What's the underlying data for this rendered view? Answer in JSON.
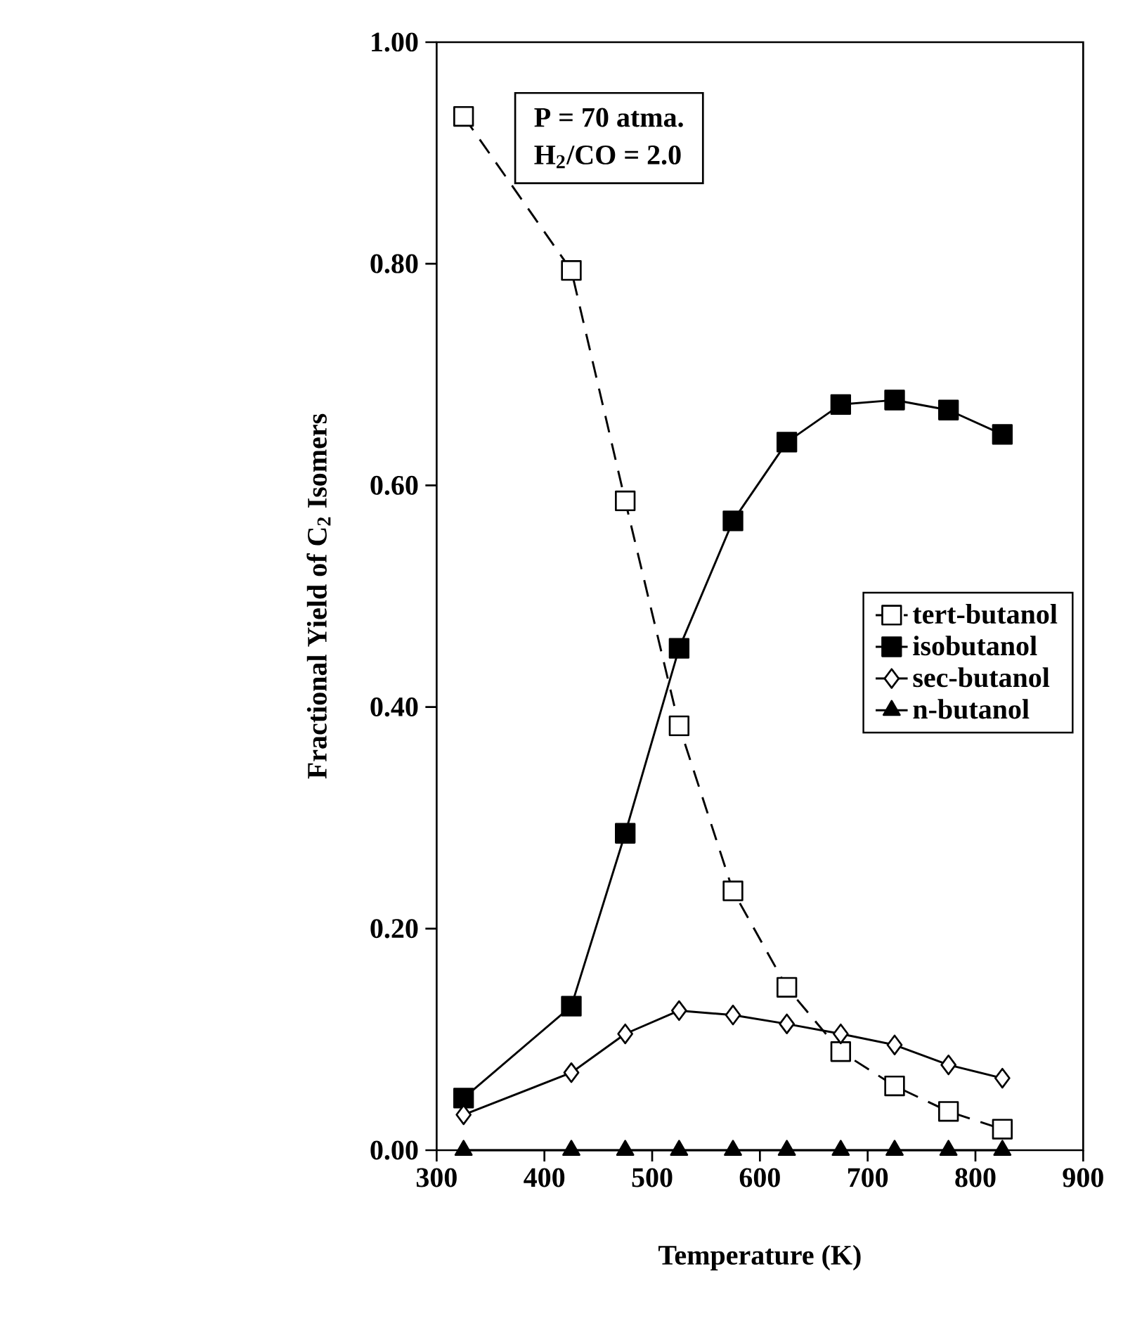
{
  "chart_data": {
    "type": "line",
    "xlabel": "Temperature (K)",
    "ylabel": "Fractional Yield of C$_{2}$ Isomers",
    "annotations": [
      "P = 70 atma.",
      "H$_{2}$/CO = 2.0"
    ],
    "x": [
      325,
      425,
      475,
      525,
      575,
      625,
      675,
      725,
      775,
      825
    ],
    "xlim": [
      300,
      900
    ],
    "xticks": [
      300,
      400,
      500,
      600,
      700,
      800,
      900
    ],
    "ylim": [
      0,
      1
    ],
    "yticks": [
      {
        "value": 0,
        "label": "0.00"
      },
      {
        "value": 0.2,
        "label": "0.20"
      },
      {
        "value": 0.4,
        "label": "0.40"
      },
      {
        "value": 0.6,
        "label": "0.60"
      },
      {
        "value": 0.8,
        "label": "0.80"
      },
      {
        "value": 1,
        "label": "1.00"
      }
    ],
    "grid": false,
    "legend": "right",
    "series": [
      {
        "name": "tert-butanol",
        "color": "#000000",
        "marker": "square",
        "line_style": "dashed",
        "values": [
          0.933,
          0.794,
          0.586,
          0.383,
          0.234,
          0.147,
          0.089,
          0.058,
          0.035,
          0.019
        ]
      },
      {
        "name": "isobutanol",
        "color": "#000000",
        "marker": "square",
        "line_style": "solid",
        "values": [
          0.047,
          0.13,
          0.286,
          0.453,
          0.568,
          0.639,
          0.673,
          0.677,
          0.668,
          0.646
        ]
      },
      {
        "name": "sec-butanol",
        "color": "#000000",
        "marker": "diamond",
        "line_style": "solid",
        "values": [
          0.032,
          0.07,
          0.105,
          0.126,
          0.122,
          0.114,
          0.105,
          0.095,
          0.077,
          0.065
        ]
      },
      {
        "name": "n-butanol",
        "color": "#000000",
        "marker": "triangle",
        "line_style": "solid",
        "values": [
          0.0,
          0.0,
          0.0,
          0.0,
          0.0,
          0.0,
          0.0,
          0.0,
          0.0,
          0.0
        ]
      }
    ]
  }
}
